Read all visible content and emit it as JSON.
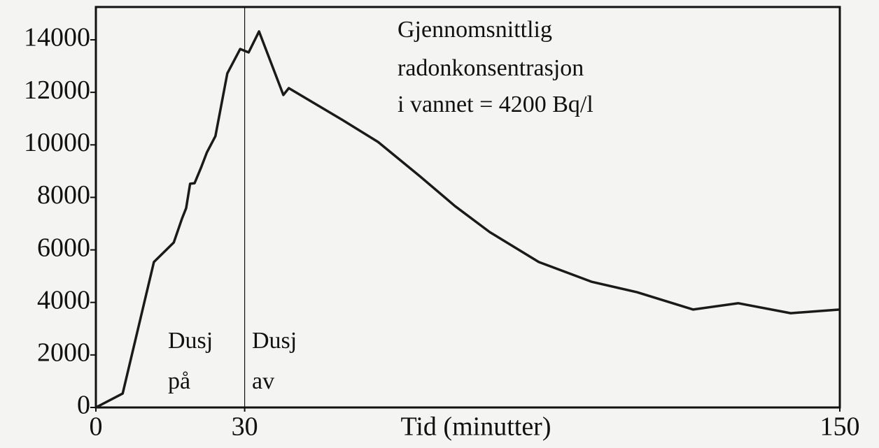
{
  "chart_data": {
    "type": "line",
    "xlabel": "Tid (minutter)",
    "x": [
      0,
      5.4,
      11.7,
      15.7,
      17.4,
      18.2,
      19,
      19.9,
      21.2,
      22.4,
      24.1,
      26.5,
      29.1,
      30.8,
      32.9,
      37.8,
      38.9,
      49.8,
      56.9,
      65.3,
      72.4,
      79.4,
      89.3,
      99.9,
      109.1,
      120.4,
      129.5,
      140.1,
      150
    ],
    "series": [
      {
        "color": "#1a1a1a",
        "values": [
          0,
          530,
          5540,
          6280,
          7210,
          7590,
          8520,
          8540,
          9130,
          9720,
          10330,
          12720,
          13650,
          13520,
          14320,
          11900,
          12160,
          10940,
          10110,
          8810,
          7670,
          6680,
          5540,
          4790,
          4390,
          3730,
          3970,
          3590,
          3730
        ]
      }
    ],
    "xlim": [
      0,
      150
    ],
    "xticks": [
      0,
      30,
      150
    ],
    "ylim": [
      0,
      15250
    ],
    "yticks": [
      0,
      2000,
      4000,
      6000,
      8000,
      10000,
      12000,
      14000
    ],
    "vline": 30,
    "annotations": [
      "Gjennomsnittlig",
      "radonkonsentrasjon",
      "i vannet = 4200 Bq/l",
      "Dusj",
      "på",
      "Dusj",
      "av"
    ]
  }
}
